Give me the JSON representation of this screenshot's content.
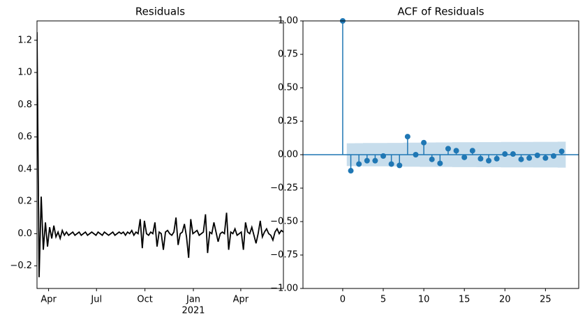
{
  "chart_data": [
    {
      "type": "line",
      "title": "Residuals",
      "color": "#000000",
      "values": [
        1.25,
        -0.27,
        0.23,
        -0.1,
        0.07,
        -0.08,
        0.04,
        -0.03,
        0.05,
        -0.02,
        0.01,
        -0.03,
        0.02,
        -0.01,
        0.01,
        -0.01,
        0.0,
        0.01,
        -0.01,
        0.0,
        0.01,
        -0.01,
        0.0,
        0.01,
        -0.01,
        0.0,
        0.01,
        0.0,
        -0.01,
        0.01,
        0.0,
        -0.01,
        0.01,
        0.0,
        -0.01,
        0.0,
        0.01,
        -0.01,
        0.0,
        0.01,
        0.0,
        0.01,
        -0.01,
        0.01,
        0.0,
        0.02,
        -0.01,
        0.01,
        0.0,
        0.09,
        -0.09,
        0.08,
        0.0,
        -0.01,
        0.01,
        0.0,
        0.07,
        -0.08,
        0.01,
        0.0,
        -0.1,
        0.01,
        0.02,
        0.0,
        -0.01,
        0.01,
        0.1,
        -0.07,
        0.0,
        0.01,
        0.06,
        -0.02,
        -0.15,
        0.09,
        0.0,
        0.01,
        0.02,
        -0.01,
        0.0,
        0.01,
        0.12,
        -0.12,
        0.01,
        0.0,
        0.07,
        0.01,
        -0.05,
        0.0,
        0.01,
        0.0,
        0.13,
        -0.1,
        0.01,
        0.0,
        0.03,
        -0.01,
        0.0,
        0.01,
        -0.1,
        0.07,
        0.01,
        0.0,
        0.04,
        -0.01,
        -0.06,
        0.0,
        0.08,
        -0.02,
        0.01,
        0.03,
        0.0,
        -0.01,
        -0.04,
        0.01,
        0.03,
        0.0,
        0.02,
        0.01
      ],
      "xlim": [
        0,
        117
      ],
      "xticks": [
        {
          "value": 5.5,
          "label": "Apr"
        },
        {
          "value": 28.25,
          "label": "Jul"
        },
        {
          "value": 51.25,
          "label": "Oct"
        },
        {
          "value": 74.25,
          "label": "Jan"
        },
        {
          "value": 96.75,
          "label": "Apr"
        }
      ],
      "xlabel": "2021",
      "ylim": [
        -0.34,
        1.32
      ],
      "yticks": [
        {
          "value": -0.2,
          "label": "−0.2"
        },
        {
          "value": 0.0,
          "label": "0.0"
        },
        0.2,
        0.4,
        0.6,
        0.8,
        {
          "value": 1.0,
          "label": "1.0"
        },
        1.2
      ]
    },
    {
      "type": "stem",
      "title": "ACF of Residuals",
      "color": "#1f77b4",
      "x": [
        0,
        1,
        2,
        3,
        4,
        5,
        6,
        7,
        8,
        9,
        10,
        11,
        12,
        13,
        14,
        15,
        16,
        17,
        18,
        19,
        20,
        21,
        22,
        23,
        24,
        25,
        26,
        27
      ],
      "values": [
        1.0,
        -0.12,
        -0.07,
        -0.045,
        -0.045,
        -0.01,
        -0.07,
        -0.08,
        0.135,
        0.0,
        0.09,
        -0.035,
        -0.065,
        0.045,
        0.03,
        -0.02,
        0.03,
        -0.03,
        -0.045,
        -0.03,
        0.005,
        0.005,
        -0.035,
        -0.025,
        -0.005,
        -0.025,
        -0.01,
        0.025
      ],
      "confidence_band": [
        null,
        0.085,
        0.086,
        0.087,
        0.087,
        0.087,
        0.088,
        0.088,
        0.09,
        0.09,
        0.091,
        0.091,
        0.092,
        0.092,
        0.093,
        0.093,
        0.093,
        0.094,
        0.094,
        0.094,
        0.095,
        0.095,
        0.095,
        0.095,
        0.096,
        0.096,
        0.096,
        0.097
      ],
      "xlim": [
        -4.9,
        29.1
      ],
      "xticks": [
        0,
        5,
        10,
        15,
        20,
        25
      ],
      "ylim": [
        -1.0,
        1.0
      ],
      "yticks": [
        {
          "value": -1.0,
          "label": "−1.00"
        },
        {
          "value": -0.75,
          "label": "−0.75"
        },
        {
          "value": -0.5,
          "label": "−0.50"
        },
        {
          "value": -0.25,
          "label": "−0.25"
        },
        {
          "value": 0.0,
          "label": "0.00"
        },
        {
          "value": 0.25,
          "label": "0.25"
        },
        {
          "value": 0.5,
          "label": "0.50"
        },
        {
          "value": 0.75,
          "label": "0.75"
        },
        {
          "value": 1.0,
          "label": "1.00"
        }
      ]
    }
  ]
}
